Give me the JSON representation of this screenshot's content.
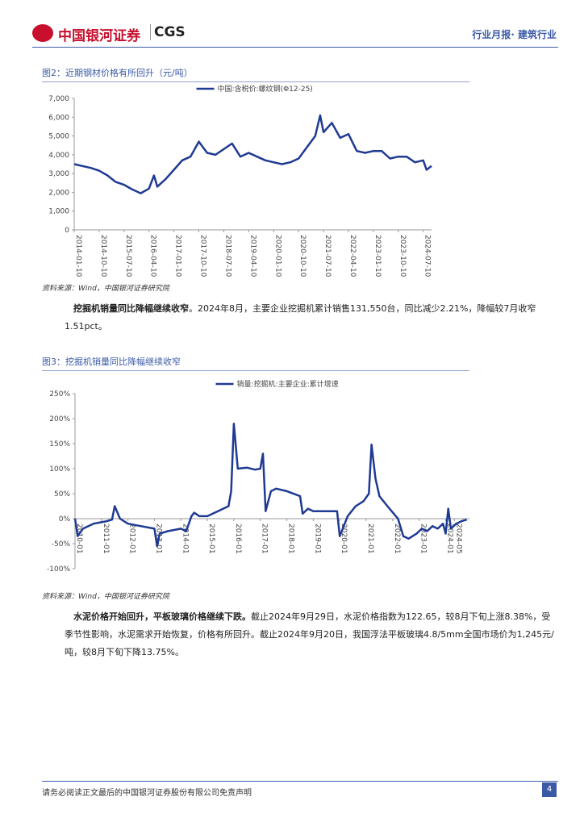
{
  "header": {
    "logo": "中国银河证券",
    "logo_en": "CGS",
    "right": "行业月报· 建筑行业"
  },
  "paragraphs": [
    {
      "bold": "挖掘机销量同比降幅继续收窄",
      "text": "。2024年8月，主要企业挖掘机累计销售131,550台，同比减少2.21%，降幅较7月收窄1.51pct。"
    },
    {
      "bold": "水泥价格开始回升，平板玻璃价格继续下跌。",
      "text": "截止2024年9月29日，水泥价格指数为122.65，较8月下旬上涨8.38%，受季节性影响，水泥需求开始恢复，价格有所回升。截止2024年9月20日，我国浮法平板玻璃4.8/5mm全国市场价为1,245元/吨，较8月下旬下降13.75%。"
    }
  ],
  "footer": {
    "disclaimer": "请务必阅读正文最后的中国银河证券股份有限公司免责声明",
    "page": "4"
  },
  "chart_data": [
    {
      "type": "line",
      "title": "图2：近期钢材价格有所回升（元/吨）",
      "source": "资料来源：Wind，中国银河证券研究院",
      "series": [
        {
          "name": "中国:含税价:螺纹钢(Φ12-25)",
          "color": "#1f3a93",
          "x": [
            2014.0,
            2014.5,
            2014.75,
            2015.0,
            2015.25,
            2015.5,
            2015.75,
            2016.0,
            2016.25,
            2016.4,
            2016.5,
            2016.75,
            2017.0,
            2017.25,
            2017.5,
            2017.75,
            2018.0,
            2018.25,
            2018.5,
            2018.75,
            2019.0,
            2019.25,
            2019.5,
            2019.75,
            2020.0,
            2020.25,
            2020.5,
            2020.75,
            2021.0,
            2021.25,
            2021.4,
            2021.5,
            2021.75,
            2022.0,
            2022.25,
            2022.5,
            2022.75,
            2023.0,
            2023.25,
            2023.5,
            2023.75,
            2024.0,
            2024.25,
            2024.5,
            2024.6,
            2024.75
          ],
          "values": [
            3500,
            3300,
            3150,
            2900,
            2550,
            2400,
            2150,
            1950,
            2200,
            2900,
            2300,
            2700,
            3200,
            3700,
            3900,
            4700,
            4100,
            4000,
            4300,
            4600,
            3900,
            4100,
            3900,
            3700,
            3600,
            3500,
            3600,
            3800,
            4400,
            5000,
            6100,
            5200,
            5700,
            4900,
            5100,
            4200,
            4100,
            4200,
            4200,
            3800,
            3900,
            3900,
            3600,
            3700,
            3200,
            3400
          ]
        }
      ],
      "ylim": [
        0,
        7000
      ],
      "yticks": [
        0,
        {
          "value": 1000,
          "label": "1,000"
        },
        {
          "value": 2000,
          "label": "2,000"
        },
        {
          "value": 3000,
          "label": "3,000"
        },
        {
          "value": 4000,
          "label": "4,000"
        },
        {
          "value": 5000,
          "label": "5,000"
        },
        {
          "value": 6000,
          "label": "6,000"
        },
        {
          "value": 7000,
          "label": "7,000"
        }
      ],
      "xlim": [
        2014,
        2024.75
      ],
      "xticks": [
        {
          "value": 2014.0,
          "label": "2014-01-10"
        },
        {
          "value": 2014.75,
          "label": "2014-10-10"
        },
        {
          "value": 2015.5,
          "label": "2015-07-10"
        },
        {
          "value": 2016.25,
          "label": "2016-04-10"
        },
        {
          "value": 2017.0,
          "label": "2017-01-10"
        },
        {
          "value": 2017.75,
          "label": "2017-10-10"
        },
        {
          "value": 2018.5,
          "label": "2018-07-10"
        },
        {
          "value": 2019.25,
          "label": "2019-04-10"
        },
        {
          "value": 2020.0,
          "label": "2020-01-10"
        },
        {
          "value": 2020.75,
          "label": "2020-10-10"
        },
        {
          "value": 2021.5,
          "label": "2021-07-10"
        },
        {
          "value": 2022.25,
          "label": "2022-04-10"
        },
        {
          "value": 2023.0,
          "label": "2023-01-10"
        },
        {
          "value": 2023.75,
          "label": "2023-10-10"
        },
        {
          "value": 2024.5,
          "label": "2024-07-10"
        }
      ]
    },
    {
      "type": "line",
      "title": "图3：挖掘机销量同比降幅继续收窄",
      "source": "资料来源：Wind，中国银河证券研究院",
      "series": [
        {
          "name": "销量:挖掘机:主要企业:累计增速",
          "color": "#1f3a93",
          "x": [
            2010.0,
            2010.1,
            2010.3,
            2010.7,
            2011.2,
            2011.4,
            2011.5,
            2011.7,
            2012.0,
            2012.5,
            2013.0,
            2013.1,
            2013.2,
            2013.5,
            2014.0,
            2014.2,
            2014.4,
            2014.5,
            2014.7,
            2015.0,
            2015.4,
            2015.8,
            2015.9,
            2016.0,
            2016.15,
            2016.5,
            2016.8,
            2017.0,
            2017.1,
            2017.2,
            2017.4,
            2017.6,
            2018.0,
            2018.5,
            2018.6,
            2018.8,
            2019.0,
            2019.5,
            2019.9,
            2020.0,
            2020.3,
            2020.6,
            2020.9,
            2021.1,
            2021.2,
            2021.35,
            2021.5,
            2021.8,
            2022.2,
            2022.4,
            2022.6,
            2022.9,
            2023.1,
            2023.3,
            2023.5,
            2023.7,
            2023.9,
            2024.0,
            2024.1,
            2024.2,
            2024.4,
            2024.6,
            2024.8
          ],
          "values": [
            0,
            -35,
            -20,
            -10,
            -5,
            -2,
            25,
            0,
            -10,
            -15,
            -20,
            -55,
            -30,
            -25,
            -20,
            -25,
            5,
            12,
            5,
            5,
            15,
            25,
            55,
            190,
            100,
            102,
            98,
            100,
            130,
            15,
            55,
            60,
            55,
            45,
            10,
            20,
            15,
            15,
            15,
            -35,
            5,
            25,
            35,
            50,
            148,
            80,
            45,
            25,
            0,
            -35,
            -40,
            -30,
            -20,
            -25,
            -15,
            -20,
            -10,
            -30,
            20,
            -20,
            -10,
            -5,
            -2
          ]
        }
      ],
      "ylim": [
        -100,
        250
      ],
      "yticks": [
        {
          "value": -100,
          "label": "-100%"
        },
        {
          "value": -50,
          "label": "-50%"
        },
        {
          "value": 0,
          "label": "0%"
        },
        {
          "value": 50,
          "label": "50%"
        },
        {
          "value": 100,
          "label": "100%"
        },
        {
          "value": 150,
          "label": "150%"
        },
        {
          "value": 200,
          "label": "200%"
        },
        {
          "value": 250,
          "label": "250%"
        }
      ],
      "xlim": [
        2010,
        2024.9
      ],
      "xticks": [
        {
          "value": 2010,
          "label": "2010-01"
        },
        {
          "value": 2011,
          "label": "2011-01"
        },
        {
          "value": 2012,
          "label": "2012-01"
        },
        {
          "value": 2013,
          "label": "2013-01"
        },
        {
          "value": 2014,
          "label": "2014-01"
        },
        {
          "value": 2015,
          "label": "2015-01"
        },
        {
          "value": 2016,
          "label": "2016-01"
        },
        {
          "value": 2017,
          "label": "2017-01"
        },
        {
          "value": 2018,
          "label": "2018-01"
        },
        {
          "value": 2019,
          "label": "2019-01"
        },
        {
          "value": 2020,
          "label": "2020-01"
        },
        {
          "value": 2021,
          "label": "2021-01"
        },
        {
          "value": 2022,
          "label": "2022-01"
        },
        {
          "value": 2023,
          "label": "2023-01"
        },
        {
          "value": 2024,
          "label": "2024-01"
        },
        {
          "value": 2024.33,
          "label": "2024-05"
        }
      ]
    }
  ]
}
